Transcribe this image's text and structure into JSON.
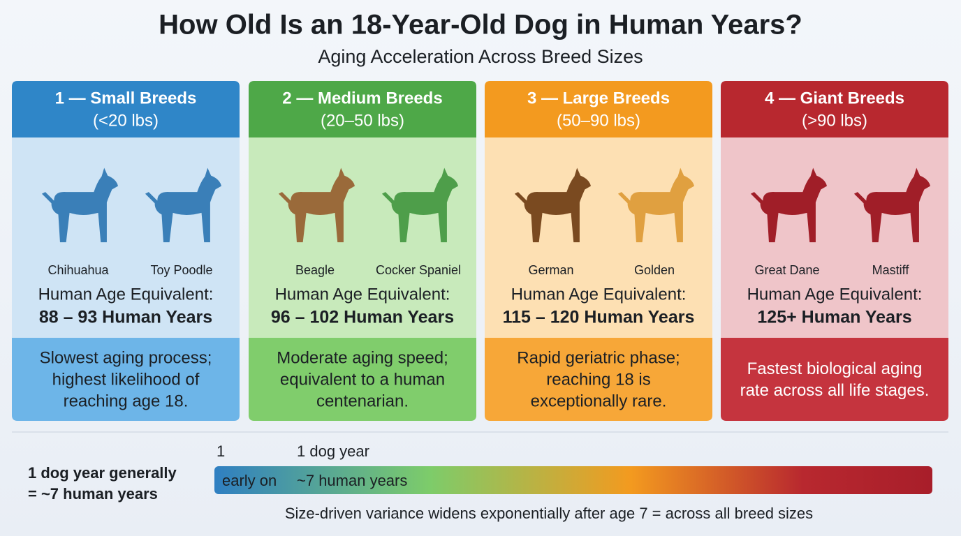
{
  "header": {
    "title": "How Old Is an 18-Year-Old Dog in Human Years?",
    "subtitle": "Aging Acceleration Across Breed Sizes"
  },
  "cards": [
    {
      "title": "1 — Small Breeds",
      "weight": "(<20 lbs)",
      "breeds": [
        "Chihuahua",
        "Toy Poodle"
      ],
      "age_label": "Human Age Equivalent:",
      "age": "88 – 93 Human Years",
      "description": [
        "Slowest aging process;",
        "highest likelihood of",
        "reaching age 18."
      ]
    },
    {
      "title": "2 — Medium Breeds",
      "weight": "(20–50 lbs)",
      "breeds": [
        "Beagle",
        "Cocker Spaniel"
      ],
      "age_label": "Human Age Equivalent:",
      "age": "96 – 102 Human Years",
      "description": [
        "Moderate aging speed;",
        "equivalent to a human",
        "centenarian."
      ]
    },
    {
      "title": "3 — Large Breeds",
      "weight": "(50–90 lbs)",
      "breeds": [
        "German",
        "Golden"
      ],
      "age_label": "Human Age Equivalent:",
      "age": "115 – 120 Human Years",
      "description": [
        "Rapid geriatric phase;",
        "reaching 18 is",
        "exceptionally rare."
      ]
    },
    {
      "title": "4 — Giant Breeds",
      "weight": "(>90 lbs)",
      "breeds": [
        "Great Dane",
        "Mastiff"
      ],
      "age_label": "Human Age Equivalent:",
      "age": "125+ Human Years",
      "description": [
        "Fastest biological aging",
        "rate across all life stages."
      ]
    }
  ],
  "footer": {
    "note": [
      "1 dog year generally",
      "= ~7 human years"
    ],
    "scale_start": "1",
    "scale_top": "1 dog year",
    "bar_left": "early on",
    "bar_mid": "~7 human years",
    "caption": "Size-driven variance widens exponentially after age 7 = across all breed sizes"
  }
}
